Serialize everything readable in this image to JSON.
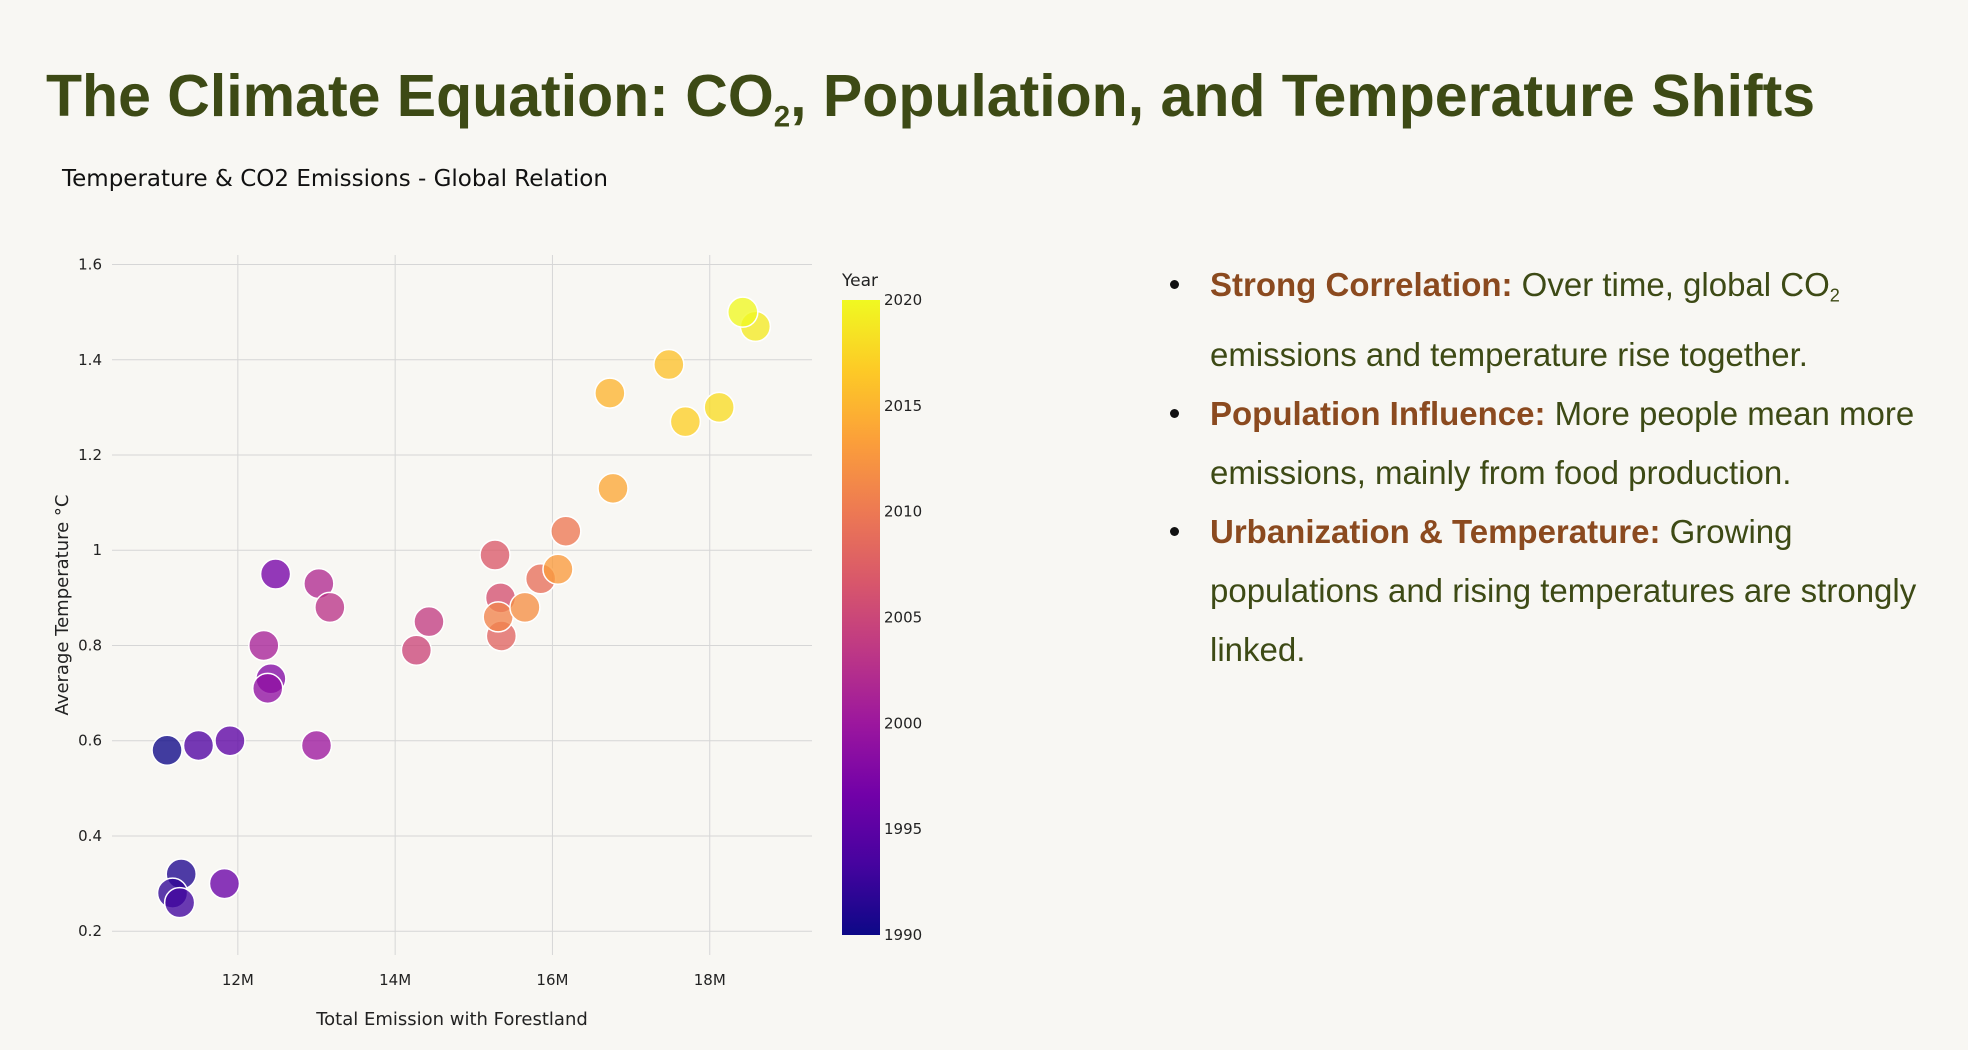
{
  "page": {
    "title_prefix": "The Climate Equation: CO",
    "title_sub": "2",
    "title_suffix": ", Population, and Temperature Shifts"
  },
  "bullets": [
    {
      "heading": "Strong Correlation:",
      "pre": " Over time, global CO",
      "sub": "2",
      "post": " emissions and temperature rise together."
    },
    {
      "heading": "Population Influence:",
      "pre": " More people mean more emissions, mainly from food production.",
      "sub": "",
      "post": ""
    },
    {
      "heading": "Urbanization & Temperature:",
      "pre": " Growing populations and rising temperatures are strongly linked.",
      "sub": "",
      "post": ""
    }
  ],
  "colors": {
    "title": "#3d4a15",
    "bullet_heading": "#8b4a1f",
    "background": "#f8f7f3"
  },
  "chart_data": {
    "type": "scatter",
    "title": "Temperature & CO2 Emissions - Global Relation",
    "xlabel": "Total Emission with Forestland",
    "ylabel": "Average Temperature °C",
    "xlim": [
      10400000,
      19300000
    ],
    "ylim": [
      0.15,
      1.62
    ],
    "x_ticks": [
      12000000,
      14000000,
      16000000,
      18000000
    ],
    "x_tick_labels": [
      "12M",
      "14M",
      "16M",
      "18M"
    ],
    "y_ticks": [
      0.2,
      0.4,
      0.6,
      0.8,
      1.0,
      1.2,
      1.4,
      1.6
    ],
    "y_tick_labels": [
      "0.2",
      "0.4",
      "0.6",
      "0.8",
      "1",
      "1.2",
      "1.4",
      "1.6"
    ],
    "grid": true,
    "colorbar": {
      "title": "Year",
      "min": 1990,
      "max": 2020,
      "ticks": [
        1990,
        1995,
        2000,
        2005,
        2010,
        2015,
        2020
      ],
      "colorscale": [
        "#0d0887",
        "#46039f",
        "#7201a8",
        "#9c179e",
        "#bd3786",
        "#d8576b",
        "#ed7953",
        "#fb9f3a",
        "#fdca26",
        "#f0f921"
      ]
    },
    "points": [
      {
        "year": 1990,
        "x": 11100000,
        "y": 0.58
      },
      {
        "year": 1991,
        "x": 11280000,
        "y": 0.32
      },
      {
        "year": 1992,
        "x": 11170000,
        "y": 0.28
      },
      {
        "year": 1993,
        "x": 11260000,
        "y": 0.26
      },
      {
        "year": 1994,
        "x": 11500000,
        "y": 0.59
      },
      {
        "year": 1995,
        "x": 11900000,
        "y": 0.6
      },
      {
        "year": 1996,
        "x": 11830000,
        "y": 0.3
      },
      {
        "year": 1997,
        "x": 12480000,
        "y": 0.95
      },
      {
        "year": 1998,
        "x": 12420000,
        "y": 0.73
      },
      {
        "year": 1999,
        "x": 12380000,
        "y": 0.71
      },
      {
        "year": 2000,
        "x": 13000000,
        "y": 0.59
      },
      {
        "year": 2001,
        "x": 12330000,
        "y": 0.8
      },
      {
        "year": 2002,
        "x": 13030000,
        "y": 0.93
      },
      {
        "year": 2003,
        "x": 13170000,
        "y": 0.88
      },
      {
        "year": 2004,
        "x": 14430000,
        "y": 0.85
      },
      {
        "year": 2005,
        "x": 14270000,
        "y": 0.79
      },
      {
        "year": 2006,
        "x": 15340000,
        "y": 0.9
      },
      {
        "year": 2007,
        "x": 15270000,
        "y": 0.99
      },
      {
        "year": 2008,
        "x": 15350000,
        "y": 0.82
      },
      {
        "year": 2009,
        "x": 15850000,
        "y": 0.94
      },
      {
        "year": 2010,
        "x": 16170000,
        "y": 1.04
      },
      {
        "year": 2011,
        "x": 15310000,
        "y": 0.86
      },
      {
        "year": 2012,
        "x": 15650000,
        "y": 0.88
      },
      {
        "year": 2013,
        "x": 16070000,
        "y": 0.96
      },
      {
        "year": 2014,
        "x": 16770000,
        "y": 1.13
      },
      {
        "year": 2015,
        "x": 16730000,
        "y": 1.33
      },
      {
        "year": 2016,
        "x": 17480000,
        "y": 1.39
      },
      {
        "year": 2017,
        "x": 17690000,
        "y": 1.27
      },
      {
        "year": 2018,
        "x": 18120000,
        "y": 1.3
      },
      {
        "year": 2019,
        "x": 18580000,
        "y": 1.47
      },
      {
        "year": 2020,
        "x": 18420000,
        "y": 1.5
      }
    ]
  }
}
